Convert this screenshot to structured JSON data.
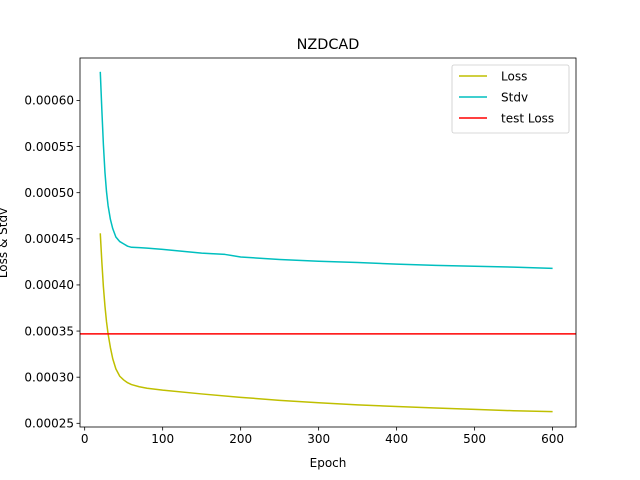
{
  "chart_data": {
    "type": "line",
    "title": "NZDCAD",
    "xlabel": "Epoch",
    "ylabel": "Loss & Stdv",
    "xlim": [
      -6,
      630
    ],
    "ylim": [
      0.000246,
      0.000646
    ],
    "xticks": [
      0,
      100,
      200,
      300,
      400,
      500,
      600
    ],
    "yticks": [
      0.00025,
      0.0003,
      0.00035,
      0.0004,
      0.00045,
      0.0005,
      0.00055,
      0.0006
    ],
    "ytick_labels": [
      "0.00025",
      "0.00030",
      "0.00035",
      "0.00040",
      "0.00045",
      "0.00050",
      "0.00055",
      "0.00060"
    ],
    "grid": false,
    "legend_position": "top-right",
    "series": [
      {
        "name": "Loss",
        "color": "#bfbf00",
        "x": [
          20,
          22,
          24,
          26,
          28,
          30,
          33,
          36,
          40,
          45,
          50,
          55,
          60,
          70,
          80,
          100,
          150,
          200,
          250,
          300,
          350,
          400,
          450,
          500,
          550,
          600
        ],
        "y": [
          0.000456,
          0.000425,
          0.000398,
          0.000377,
          0.00036,
          0.000347,
          0.000332,
          0.00032,
          0.000309,
          0.000301,
          0.000297,
          0.000294,
          0.000292,
          0.00028964,
          0.000288,
          0.00028597,
          0.00028184,
          0.00027817,
          0.0002749,
          0.00027232,
          0.00027003,
          0.00026819,
          0.00026653,
          0.00026508,
          0.00026361,
          0.00026269
        ]
      },
      {
        "name": "Stdv",
        "color": "#00bfbf",
        "x": [
          20,
          22,
          24,
          26,
          28,
          30,
          33,
          36,
          40,
          45,
          50,
          55,
          60,
          70,
          80,
          100,
          150,
          180,
          200,
          250,
          300,
          350,
          400,
          450,
          500,
          550,
          600
        ],
        "y": [
          0.000631,
          0.00059,
          0.000552,
          0.000522,
          0.000501,
          0.000486,
          0.000471,
          0.000461,
          0.000452,
          0.000447,
          0.0004445,
          0.000442,
          0.0004408,
          0.0004404,
          0.00043995,
          0.00043858,
          0.00043445,
          0.00043307,
          0.00043032,
          0.00042757,
          0.00042573,
          0.00042436,
          0.00042252,
          0.00042115,
          0.00042023,
          0.00041932,
          0.00041794
        ]
      },
      {
        "name": "test Loss",
        "color": "#ff0000",
        "type": "hline",
        "y": 0.000347
      }
    ]
  }
}
